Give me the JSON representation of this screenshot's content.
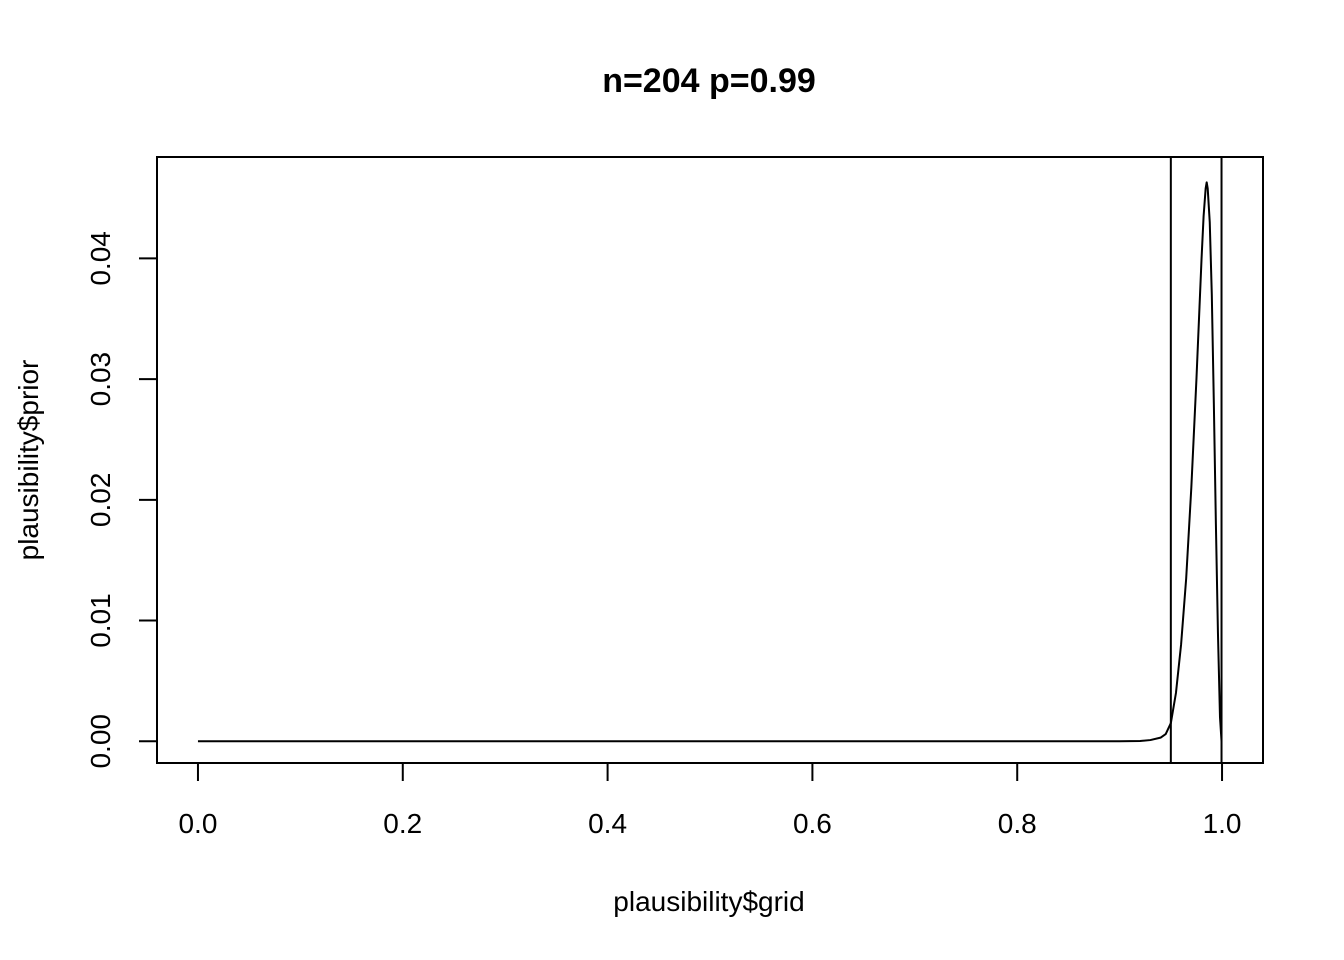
{
  "chart_data": {
    "type": "line",
    "title": "n=204  p=0.99",
    "xlabel": "plausibility$grid",
    "ylabel": "plausibility$prior",
    "xlim": [
      -0.04,
      1.04
    ],
    "ylim": [
      -0.0018,
      0.0484
    ],
    "x_ticks": [
      0.0,
      0.2,
      0.4,
      0.6,
      0.8,
      1.0
    ],
    "x_tick_labels": [
      "0.0",
      "0.2",
      "0.4",
      "0.6",
      "0.8",
      "1.0"
    ],
    "y_ticks": [
      0.0,
      0.01,
      0.02,
      0.03,
      0.04
    ],
    "y_tick_labels": [
      "0.00",
      "0.01",
      "0.02",
      "0.03",
      "0.04"
    ],
    "grid": false,
    "legend": "none",
    "vertical_lines": [
      0.95,
      0.9995
    ],
    "series": [
      {
        "x": [
          0.0,
          0.1,
          0.2,
          0.3,
          0.4,
          0.5,
          0.6,
          0.7,
          0.8,
          0.9,
          0.92,
          0.93,
          0.94,
          0.945,
          0.95,
          0.955,
          0.96,
          0.965,
          0.97,
          0.975,
          0.978,
          0.98,
          0.982,
          0.984,
          0.985,
          0.986,
          0.988,
          0.99,
          0.992,
          0.994,
          0.996,
          0.998,
          0.9995
        ],
        "y": [
          0.0,
          0.0,
          0.0,
          0.0,
          0.0,
          0.0,
          0.0,
          0.0,
          0.0,
          0.0,
          2e-05,
          0.0001,
          0.0003,
          0.0006,
          0.0015,
          0.004,
          0.008,
          0.0135,
          0.021,
          0.03,
          0.036,
          0.04,
          0.0435,
          0.0458,
          0.0463,
          0.0458,
          0.043,
          0.037,
          0.028,
          0.018,
          0.009,
          0.002,
          0.0
        ]
      }
    ]
  }
}
